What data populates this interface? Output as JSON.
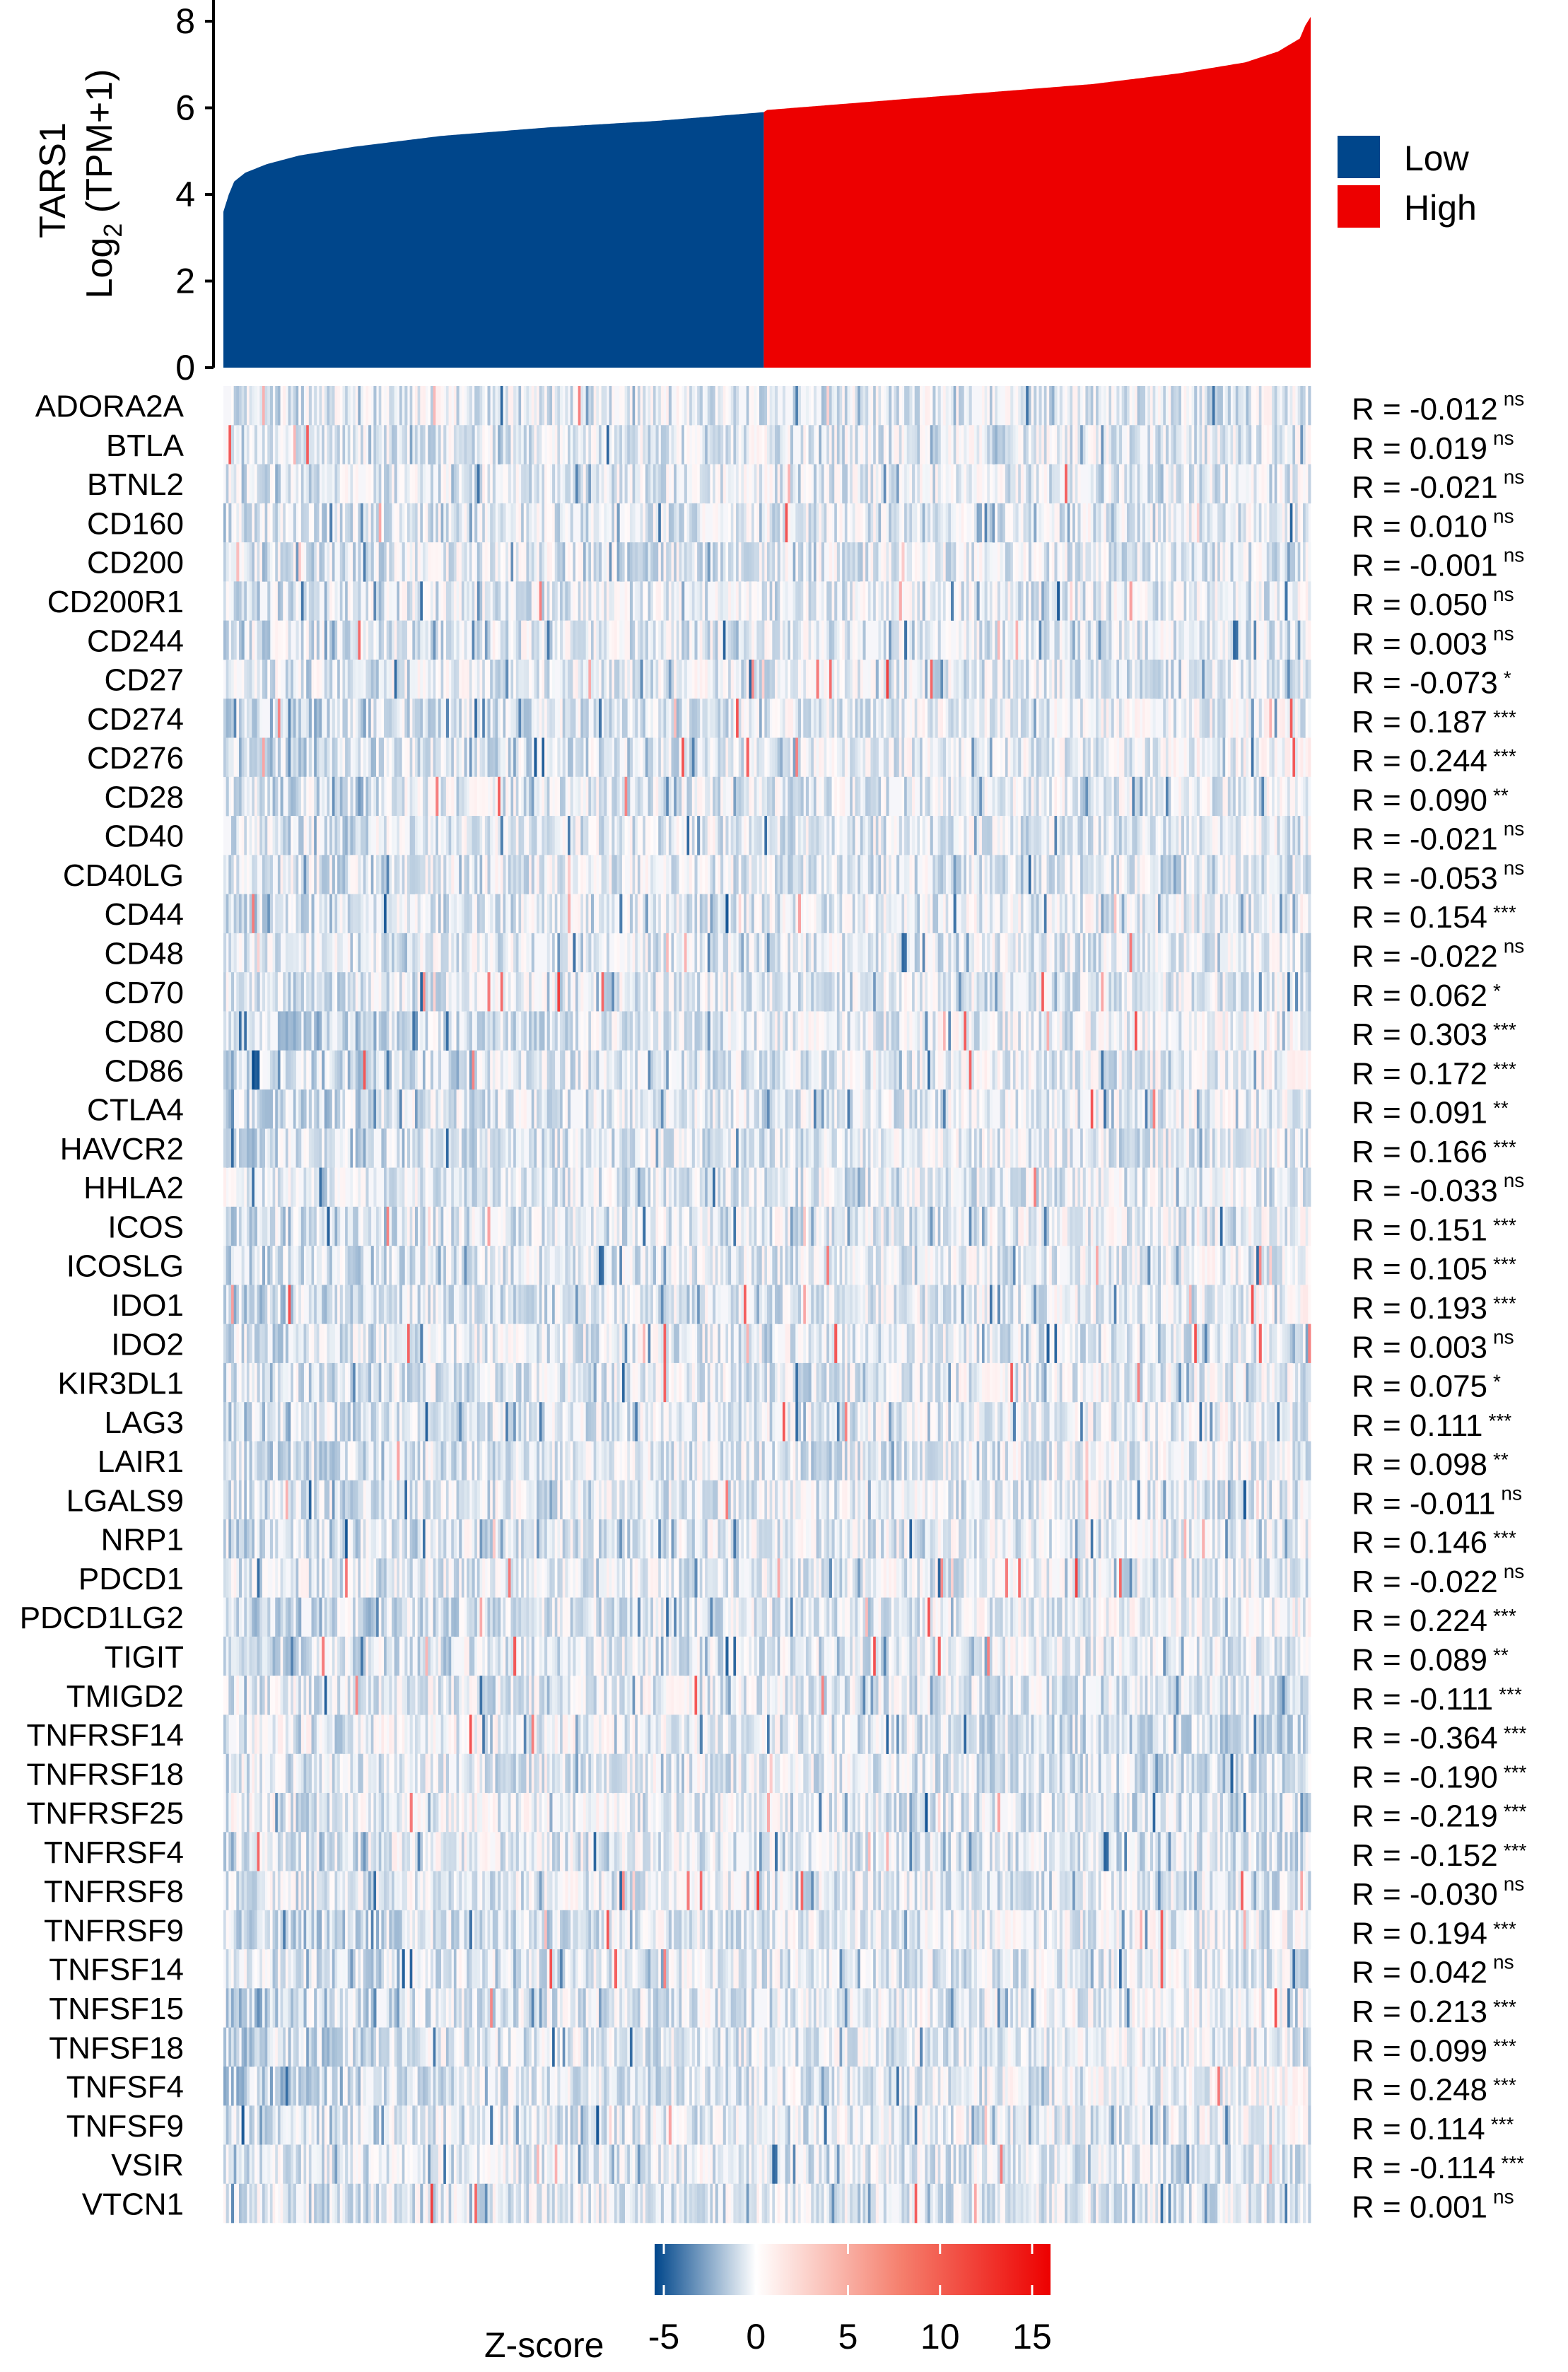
{
  "chart_data": {
    "type": "heatmap",
    "top_panel": {
      "type": "bar",
      "ylabel_line1": "TARS1",
      "ylabel_line2_pre": "Log",
      "ylabel_line2_sub": "2",
      "ylabel_line2_post": " (TPM+1)",
      "ylim": [
        0,
        8
      ],
      "yticks": [
        "0",
        "2",
        "4",
        "6",
        "8"
      ],
      "sorted_expression_profile": [
        [
          0,
          3.6
        ],
        [
          0.005,
          4.0
        ],
        [
          0.01,
          4.3
        ],
        [
          0.02,
          4.5
        ],
        [
          0.04,
          4.7
        ],
        [
          0.07,
          4.9
        ],
        [
          0.12,
          5.1
        ],
        [
          0.2,
          5.35
        ],
        [
          0.3,
          5.55
        ],
        [
          0.4,
          5.7
        ],
        [
          0.497,
          5.9
        ],
        [
          0.5,
          5.95
        ],
        [
          0.6,
          6.15
        ],
        [
          0.7,
          6.35
        ],
        [
          0.8,
          6.55
        ],
        [
          0.88,
          6.8
        ],
        [
          0.94,
          7.05
        ],
        [
          0.97,
          7.3
        ],
        [
          0.99,
          7.6
        ],
        [
          0.995,
          7.9
        ],
        [
          1.0,
          8.1
        ]
      ],
      "groups": [
        {
          "name": "Low",
          "color": "#00468B",
          "fraction": 0.497
        },
        {
          "name": "High",
          "color": "#ED0000",
          "fraction": 0.503
        }
      ]
    },
    "heatmap": {
      "genes": [
        {
          "name": "ADORA2A",
          "r": "R = -0.012",
          "sig": "ns"
        },
        {
          "name": "BTLA",
          "r": "R = 0.019",
          "sig": "ns"
        },
        {
          "name": "BTNL2",
          "r": "R = -0.021",
          "sig": "ns"
        },
        {
          "name": "CD160",
          "r": "R = 0.010",
          "sig": "ns"
        },
        {
          "name": "CD200",
          "r": "R = -0.001",
          "sig": "ns"
        },
        {
          "name": "CD200R1",
          "r": "R = 0.050",
          "sig": "ns"
        },
        {
          "name": "CD244",
          "r": "R = 0.003",
          "sig": "ns"
        },
        {
          "name": "CD27",
          "r": "R = -0.073",
          "sig": "*"
        },
        {
          "name": "CD274",
          "r": "R = 0.187",
          "sig": "***"
        },
        {
          "name": "CD276",
          "r": "R = 0.244",
          "sig": "***"
        },
        {
          "name": "CD28",
          "r": "R = 0.090",
          "sig": "**"
        },
        {
          "name": "CD40",
          "r": "R = -0.021",
          "sig": "ns"
        },
        {
          "name": "CD40LG",
          "r": "R = -0.053",
          "sig": "ns"
        },
        {
          "name": "CD44",
          "r": "R = 0.154",
          "sig": "***"
        },
        {
          "name": "CD48",
          "r": "R = -0.022",
          "sig": "ns"
        },
        {
          "name": "CD70",
          "r": "R = 0.062",
          "sig": "*"
        },
        {
          "name": "CD80",
          "r": "R = 0.303",
          "sig": "***"
        },
        {
          "name": "CD86",
          "r": "R = 0.172",
          "sig": "***"
        },
        {
          "name": "CTLA4",
          "r": "R = 0.091",
          "sig": "**"
        },
        {
          "name": "HAVCR2",
          "r": "R = 0.166",
          "sig": "***"
        },
        {
          "name": "HHLA2",
          "r": "R = -0.033",
          "sig": "ns"
        },
        {
          "name": "ICOS",
          "r": "R = 0.151",
          "sig": "***"
        },
        {
          "name": "ICOSLG",
          "r": "R = 0.105",
          "sig": "***"
        },
        {
          "name": "IDO1",
          "r": "R = 0.193",
          "sig": "***"
        },
        {
          "name": "IDO2",
          "r": "R = 0.003",
          "sig": "ns"
        },
        {
          "name": "KIR3DL1",
          "r": "R = 0.075",
          "sig": "*"
        },
        {
          "name": "LAG3",
          "r": "R = 0.111",
          "sig": "***"
        },
        {
          "name": "LAIR1",
          "r": "R = 0.098",
          "sig": "**"
        },
        {
          "name": "LGALS9",
          "r": "R = -0.011",
          "sig": "ns"
        },
        {
          "name": "NRP1",
          "r": "R = 0.146",
          "sig": "***"
        },
        {
          "name": "PDCD1",
          "r": "R = -0.022",
          "sig": "ns"
        },
        {
          "name": "PDCD1LG2",
          "r": "R = 0.224",
          "sig": "***"
        },
        {
          "name": "TIGIT",
          "r": "R = 0.089",
          "sig": "**"
        },
        {
          "name": "TMIGD2",
          "r": "R = -0.111",
          "sig": "***"
        },
        {
          "name": "TNFRSF14",
          "r": "R = -0.364",
          "sig": "***"
        },
        {
          "name": "TNFRSF18",
          "r": "R = -0.190",
          "sig": "***"
        },
        {
          "name": "TNFRSF25",
          "r": "R = -0.219",
          "sig": "***"
        },
        {
          "name": "TNFRSF4",
          "r": "R = -0.152",
          "sig": "***"
        },
        {
          "name": "TNFRSF8",
          "r": "R = -0.030",
          "sig": "ns"
        },
        {
          "name": "TNFRSF9",
          "r": "R = 0.194",
          "sig": "***"
        },
        {
          "name": "TNFSF14",
          "r": "R = 0.042",
          "sig": "ns"
        },
        {
          "name": "TNFSF15",
          "r": "R = 0.213",
          "sig": "***"
        },
        {
          "name": "TNFSF18",
          "r": "R = 0.099",
          "sig": "***"
        },
        {
          "name": "TNFSF4",
          "r": "R = 0.248",
          "sig": "***"
        },
        {
          "name": "TNFSF9",
          "r": "R = 0.114",
          "sig": "***"
        },
        {
          "name": "VSIR",
          "r": "R = -0.114",
          "sig": "***"
        },
        {
          "name": "VTCN1",
          "r": "R = 0.001",
          "sig": "ns"
        }
      ],
      "colorbar": {
        "title": "Z-score",
        "ticks": [
          "-5",
          "0",
          "5",
          "10",
          "15"
        ],
        "range": [
          -5.5,
          16
        ],
        "low_color": "#00468B",
        "mid_color": "#FFFFFF",
        "high_color": "#ED0000"
      }
    }
  }
}
